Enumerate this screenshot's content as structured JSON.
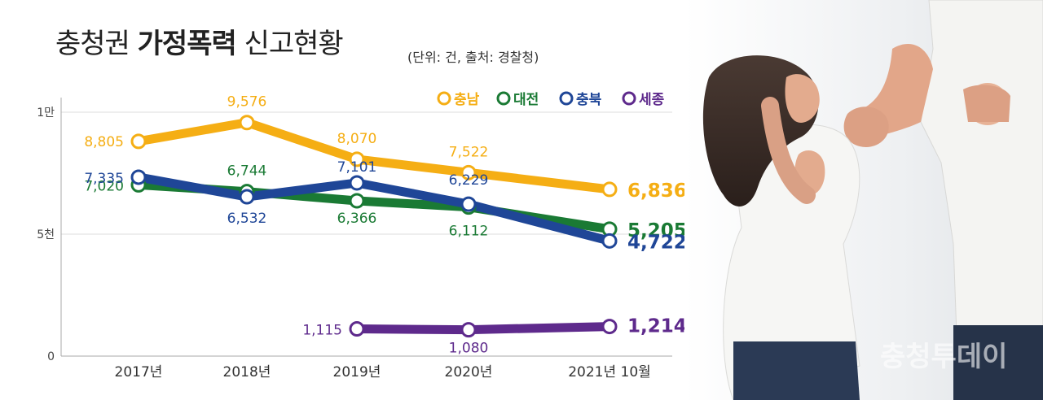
{
  "title": {
    "part1": "충청권",
    "part2": "가정폭력",
    "part3": "신고현황",
    "note": "(단위: 건, 출처: 경찰청)"
  },
  "photo_watermark": "충청투데이",
  "chart_data": {
    "type": "line",
    "title": "충청권 가정폭력 신고현황",
    "subtitle": "(단위: 건, 출처: 경찰청)",
    "categories": [
      "2017년",
      "2018년",
      "2019년",
      "2020년",
      "2021년 10월"
    ],
    "y_ticks": [
      {
        "value": 0,
        "label": "0"
      },
      {
        "value": 5000,
        "label": "5천"
      },
      {
        "value": 10000,
        "label": "1만"
      }
    ],
    "ylim": [
      0,
      10000
    ],
    "grid": true,
    "legend_position": "top-right",
    "series": [
      {
        "name": "충남",
        "color": "#f5ae14",
        "values": [
          8805,
          9576,
          8070,
          7522,
          6836
        ],
        "labels": [
          "8,805",
          "9,576",
          "8,070",
          "7,522",
          "6,836"
        ]
      },
      {
        "name": "대전",
        "color": "#1a7a34",
        "values": [
          7020,
          6744,
          6366,
          6112,
          5205
        ],
        "labels": [
          "7,020",
          "6,744",
          "6,366",
          "6,112",
          "5,205"
        ]
      },
      {
        "name": "충북",
        "color": "#1f4697",
        "values": [
          7335,
          6532,
          7101,
          6229,
          4722
        ],
        "labels": [
          "7,335",
          "6,532",
          "7,101",
          "6,229",
          "4,722"
        ]
      },
      {
        "name": "세종",
        "color": "#5e2a8c",
        "values": [
          null,
          null,
          1115,
          1080,
          1214
        ],
        "labels": [
          null,
          null,
          "1,115",
          "1,080",
          "1,214"
        ]
      }
    ]
  }
}
